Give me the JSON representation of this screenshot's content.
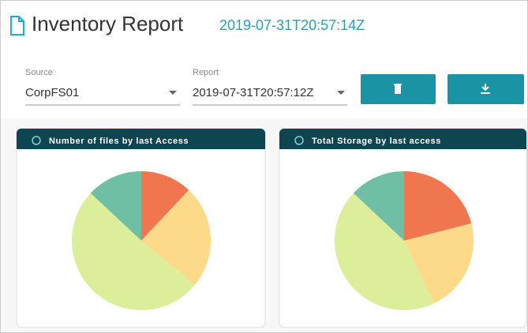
{
  "header": {
    "title": "Inventory Report",
    "timestamp": "2019-07-31T20:57:14Z"
  },
  "filters": {
    "source_label": "Source",
    "source_value": "CorpFS01",
    "report_label": "Report",
    "report_value": "2019-07-31T20:57:12Z"
  },
  "chart_data": [
    {
      "type": "pie",
      "title": "Number of files by last Access",
      "values": [
        12,
        24,
        51,
        13
      ],
      "colors": [
        "#f07650",
        "#fdd98a",
        "#dcee9a",
        "#6fbfa5"
      ]
    },
    {
      "type": "pie",
      "title": "Total Storage by last access",
      "values": [
        21,
        22,
        44,
        13
      ],
      "colors": [
        "#f07650",
        "#fdd98a",
        "#dcee9a",
        "#6fbfa5"
      ]
    }
  ]
}
